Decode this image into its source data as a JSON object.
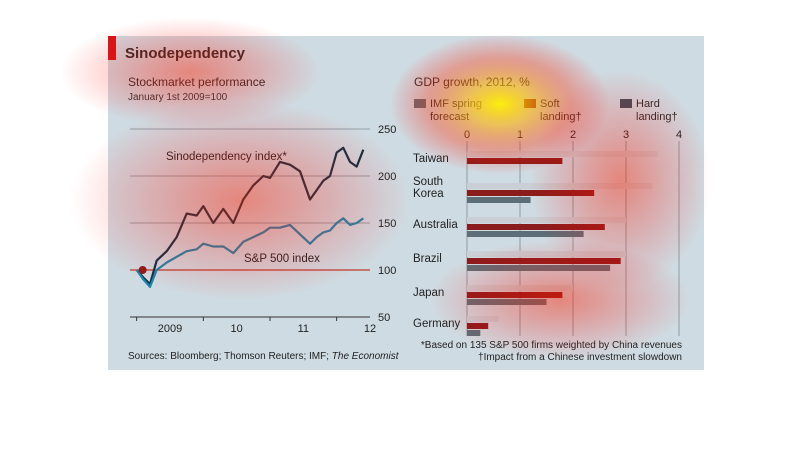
{
  "title": "Sinodependency",
  "colors": {
    "background": "#cfdbe2",
    "accent_red": "#d1171b",
    "sino_line": "#0b3244",
    "sp_line": "#1b86ad",
    "imf_bar": "#5c6f78",
    "soft_bar": "#8a1c1c",
    "hard_bar": "#c9cfd4"
  },
  "left_chart": {
    "subtitle": "Stockmarket performance",
    "note": "January 1st 2009=100",
    "line_labels": {
      "sino": "Sinodependency index*",
      "sp": "S&P 500 index"
    }
  },
  "right_chart": {
    "subtitle": "GDP growth, 2012, %",
    "legend": [
      {
        "label": "IMF spring\nforecast",
        "color": "#5c6f78"
      },
      {
        "label": "Soft\nlanding†",
        "color": "#8a1c1c"
      },
      {
        "label": "Hard\nlanding†",
        "color": "#3e4f5c"
      }
    ]
  },
  "footer": {
    "sources_prefix": "Sources: Bloomberg; Thomson Reuters; IMF; ",
    "sources_italic": "The Economist",
    "footnote1": "*Based on 135 S&P 500 firms weighted by China revenues",
    "footnote2": "†Impact from a Chinese investment slowdown"
  },
  "chart_data": [
    {
      "type": "line",
      "title": "Stockmarket performance",
      "subtitle": "January 1st 2009=100",
      "x_ticks": [
        "2009",
        "10",
        "11",
        "12"
      ],
      "ylim": [
        50,
        250
      ],
      "y_ticks": [
        50,
        100,
        150,
        200,
        250
      ],
      "y_axis_side": "right",
      "series": [
        {
          "name": "Sinodependency index*",
          "color": "#0b3244",
          "x": [
            2009.0,
            2009.1,
            2009.2,
            2009.3,
            2009.45,
            2009.6,
            2009.75,
            2009.9,
            2010.0,
            2010.15,
            2010.3,
            2010.45,
            2010.6,
            2010.75,
            2010.9,
            2011.0,
            2011.15,
            2011.3,
            2011.45,
            2011.6,
            2011.7,
            2011.8,
            2011.9,
            2012.0,
            2012.1,
            2012.2,
            2012.3,
            2012.4
          ],
          "y": [
            100,
            92,
            85,
            110,
            120,
            135,
            160,
            158,
            168,
            150,
            165,
            150,
            175,
            190,
            200,
            198,
            215,
            212,
            205,
            175,
            185,
            195,
            200,
            225,
            230,
            215,
            210,
            228
          ]
        },
        {
          "name": "S&P 500 index",
          "color": "#1b86ad",
          "x": [
            2009.0,
            2009.1,
            2009.2,
            2009.3,
            2009.45,
            2009.6,
            2009.75,
            2009.9,
            2010.0,
            2010.15,
            2010.3,
            2010.45,
            2010.6,
            2010.75,
            2010.9,
            2011.0,
            2011.15,
            2011.3,
            2011.45,
            2011.6,
            2011.7,
            2011.8,
            2011.9,
            2012.0,
            2012.1,
            2012.2,
            2012.3,
            2012.4
          ],
          "y": [
            100,
            90,
            82,
            100,
            108,
            114,
            120,
            122,
            128,
            125,
            125,
            118,
            130,
            135,
            140,
            145,
            145,
            148,
            138,
            128,
            135,
            140,
            142,
            150,
            155,
            148,
            150,
            155
          ]
        }
      ],
      "annotations": [
        {
          "x": 2009.0,
          "y": 100,
          "label": "marker"
        }
      ]
    },
    {
      "type": "bar",
      "orientation": "horizontal",
      "title": "GDP growth, 2012, %",
      "categories": [
        "Taiwan",
        "South\nKorea",
        "Australia",
        "Brazil",
        "Japan",
        "Germany"
      ],
      "xlim": [
        0,
        4
      ],
      "x_ticks": [
        0,
        1,
        2,
        3,
        4
      ],
      "series": [
        {
          "name": "IMF spring forecast",
          "values": [
            3.6,
            3.5,
            3.0,
            3.0,
            2.0,
            0.6
          ]
        },
        {
          "name": "Soft landing†",
          "values": [
            1.8,
            2.4,
            2.6,
            2.9,
            1.8,
            0.4
          ]
        },
        {
          "name": "Hard landing†",
          "values": [
            0.0,
            1.2,
            2.2,
            2.7,
            1.5,
            0.25
          ]
        }
      ]
    }
  ]
}
